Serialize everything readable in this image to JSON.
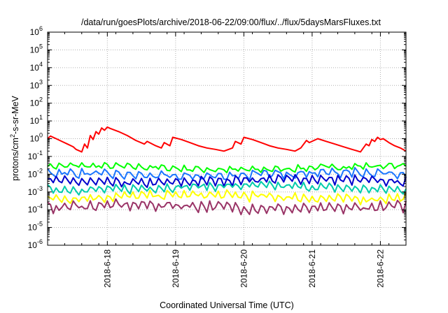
{
  "chart_data": {
    "type": "line",
    "title": "/data/run/goesPlots/archive/2018-06-22/09:00/flux/../flux/5daysMarsFluxes.txt",
    "xlabel": "Coordinated Universal Time (UTC)",
    "ylabel": {
      "prefix": "protons/cm",
      "sup": "2",
      "suffix": "-s-sr-MeV"
    },
    "x_scale": "time",
    "y_scale": "log",
    "xlim": [
      "2018-06-17 03:00",
      "2018-06-22 09:00"
    ],
    "ylim": [
      1e-06,
      1000000.0
    ],
    "grid": true,
    "legend": "none",
    "x_ticks": [
      "2018-6-18",
      "2018-6-19",
      "2018-6-20",
      "2018-6-21",
      "2018-6-22"
    ],
    "y_ticks": [
      {
        "base": "10",
        "exp": "-6"
      },
      {
        "base": "10",
        "exp": "-5"
      },
      {
        "base": "10",
        "exp": "-4"
      },
      {
        "base": "10",
        "exp": "-3"
      },
      {
        "base": "10",
        "exp": "-2"
      },
      {
        "base": "10",
        "exp": "-1"
      },
      {
        "base": "10",
        "exp": "0"
      },
      {
        "base": "10",
        "exp": "1"
      },
      {
        "base": "10",
        "exp": "2"
      },
      {
        "base": "10",
        "exp": "3"
      },
      {
        "base": "10",
        "exp": "4"
      },
      {
        "base": "10",
        "exp": "5"
      },
      {
        "base": "10",
        "exp": "6"
      }
    ],
    "series": [
      {
        "color": "#ff0000",
        "x": [
          "2018-06-17 03:00",
          "2018-06-17 04:00",
          "2018-06-17 06:00",
          "2018-06-17 08:00",
          "2018-06-17 10:00",
          "2018-06-17 12:00",
          "2018-06-17 13:00",
          "2018-06-17 15:00",
          "2018-06-17 16:00",
          "2018-06-17 17:00",
          "2018-06-17 18:00",
          "2018-06-17 19:00",
          "2018-06-17 20:00",
          "2018-06-17 21:00",
          "2018-06-17 22:00",
          "2018-06-17 23:00",
          "2018-06-18 00:00",
          "2018-06-18 01:00",
          "2018-06-18 04:00",
          "2018-06-18 07:00",
          "2018-06-18 10:00",
          "2018-06-18 13:00",
          "2018-06-18 14:00",
          "2018-06-18 17:00",
          "2018-06-18 19:00",
          "2018-06-18 20:00",
          "2018-06-18 22:00",
          "2018-06-18 23:00",
          "2018-06-19 02:00",
          "2018-06-19 05:00",
          "2018-06-19 08:00",
          "2018-06-19 11:00",
          "2018-06-19 14:00",
          "2018-06-19 17:00",
          "2018-06-19 20:00",
          "2018-06-19 21:00",
          "2018-06-19 23:00",
          "2018-06-20 00:00",
          "2018-06-20 03:00",
          "2018-06-20 06:00",
          "2018-06-20 09:00",
          "2018-06-20 12:00",
          "2018-06-20 15:00",
          "2018-06-20 18:00",
          "2018-06-20 20:00",
          "2018-06-20 22:00",
          "2018-06-20 23:00",
          "2018-06-21 02:00",
          "2018-06-21 05:00",
          "2018-06-21 08:00",
          "2018-06-21 11:00",
          "2018-06-21 14:00",
          "2018-06-21 17:00",
          "2018-06-21 18:00",
          "2018-06-21 19:00",
          "2018-06-21 20:00",
          "2018-06-21 21:00",
          "2018-06-21 22:00",
          "2018-06-21 23:00",
          "2018-06-22 00:00",
          "2018-06-22 01:00",
          "2018-06-22 03:00",
          "2018-06-22 05:00",
          "2018-06-22 07:00",
          "2018-06-22 09:00"
        ],
        "y": [
          1.0,
          1.4,
          1.0,
          0.7,
          0.5,
          0.35,
          0.25,
          0.18,
          0.5,
          0.3,
          1.5,
          0.9,
          2.5,
          1.8,
          4.0,
          3.0,
          4.5,
          3.8,
          2.5,
          1.5,
          0.8,
          0.5,
          0.7,
          0.4,
          0.3,
          0.6,
          0.4,
          1.2,
          0.9,
          0.6,
          0.4,
          0.3,
          0.25,
          0.2,
          0.3,
          0.7,
          0.5,
          1.2,
          0.9,
          0.6,
          0.4,
          0.3,
          0.25,
          0.2,
          0.3,
          0.8,
          0.6,
          1.0,
          0.7,
          0.5,
          0.35,
          0.25,
          0.18,
          0.3,
          0.5,
          0.4,
          0.9,
          0.7,
          1.2,
          0.9,
          1.0,
          0.6,
          0.4,
          0.3,
          0.2
        ]
      },
      {
        "color": "#00ff00",
        "base": 0.022,
        "amp": 1.9,
        "period_h": 4,
        "jitter": 0.25
      },
      {
        "color": "#1a75ff",
        "base": 0.009,
        "amp": 2.8,
        "period_h": 4,
        "jitter": 0.3
      },
      {
        "color": "#0000cc",
        "base": 0.0035,
        "amp": 3.5,
        "period_h": 3,
        "jitter": 0.3
      },
      {
        "color": "#00ccaa",
        "base": 0.0015,
        "amp": 3.0,
        "period_h": 3,
        "jitter": 0.3
      },
      {
        "color": "#ffff00",
        "base": 0.00045,
        "amp": 3.2,
        "period_h": 3,
        "jitter": 0.35
      },
      {
        "color": "#993366",
        "base": 0.00012,
        "amp": 3.8,
        "period_h": 3,
        "jitter": 0.4
      }
    ]
  }
}
